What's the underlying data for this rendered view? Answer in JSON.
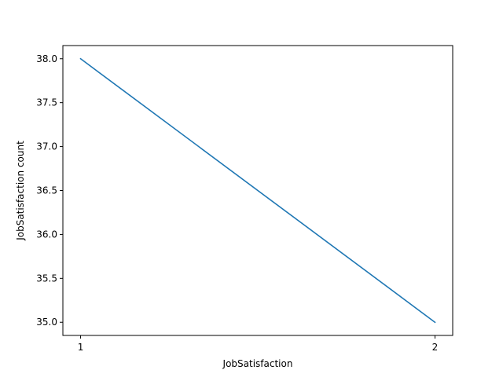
{
  "chart_data": {
    "type": "line",
    "title": "",
    "xlabel": "JobSatisfaction",
    "ylabel": "JobSatisfaction count",
    "x": [
      1,
      2
    ],
    "series": [
      {
        "values": [
          38,
          35
        ],
        "color": "#1f77b4"
      }
    ],
    "xticks": [
      "1",
      "2"
    ],
    "yticks": [
      "35.0",
      "35.5",
      "36.0",
      "36.5",
      "37.0",
      "37.5",
      "38.0"
    ],
    "xlim": [
      0.95,
      2.05
    ],
    "ylim": [
      34.85,
      38.15
    ],
    "grid": false,
    "legend": "none"
  }
}
